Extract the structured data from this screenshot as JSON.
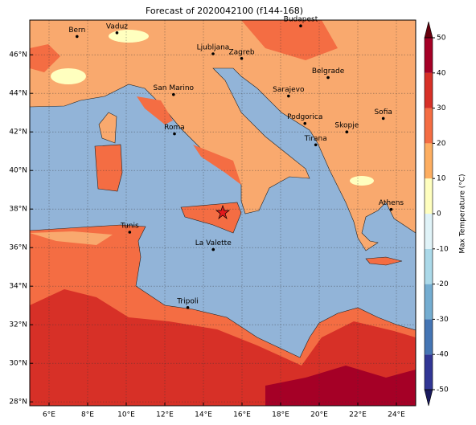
{
  "chart_data": {
    "type": "map",
    "title": "Forecast of 2020042100 (f144-168)",
    "xlim": [
      5,
      25
    ],
    "ylim": [
      27.8,
      47.8
    ],
    "xticks": [
      {
        "value": 6,
        "label": "6°E"
      },
      {
        "value": 8,
        "label": "8°E"
      },
      {
        "value": 10,
        "label": "10°E"
      },
      {
        "value": 12,
        "label": "12°E"
      },
      {
        "value": 14,
        "label": "14°E"
      },
      {
        "value": 16,
        "label": "16°E"
      },
      {
        "value": 18,
        "label": "18°E"
      },
      {
        "value": 20,
        "label": "20°E"
      },
      {
        "value": 22,
        "label": "22°E"
      },
      {
        "value": 24,
        "label": "24°E"
      }
    ],
    "yticks": [
      {
        "value": 28,
        "label": "28°N"
      },
      {
        "value": 30,
        "label": "30°N"
      },
      {
        "value": 32,
        "label": "32°N"
      },
      {
        "value": 34,
        "label": "34°N"
      },
      {
        "value": 36,
        "label": "36°N"
      },
      {
        "value": 38,
        "label": "38°N"
      },
      {
        "value": 40,
        "label": "40°N"
      },
      {
        "value": 42,
        "label": "42°N"
      },
      {
        "value": 44,
        "label": "44°N"
      },
      {
        "value": 46,
        "label": "46°N"
      }
    ],
    "grid": true,
    "cities": [
      {
        "name": "Bern",
        "lon": 7.45,
        "lat": 46.95
      },
      {
        "name": "Vaduz",
        "lon": 9.52,
        "lat": 47.14
      },
      {
        "name": "Budapest",
        "lon": 19.04,
        "lat": 47.5
      },
      {
        "name": "Ljubljana",
        "lon": 14.5,
        "lat": 46.05
      },
      {
        "name": "Zagreb",
        "lon": 15.98,
        "lat": 45.81
      },
      {
        "name": "Belgrade",
        "lon": 20.46,
        "lat": 44.82
      },
      {
        "name": "Sarajevo",
        "lon": 18.41,
        "lat": 43.86
      },
      {
        "name": "San Marino",
        "lon": 12.45,
        "lat": 43.94
      },
      {
        "name": "Sofia",
        "lon": 23.32,
        "lat": 42.7
      },
      {
        "name": "Podgorica",
        "lon": 19.26,
        "lat": 42.44
      },
      {
        "name": "Skopje",
        "lon": 21.43,
        "lat": 42.0
      },
      {
        "name": "Roma",
        "lon": 12.5,
        "lat": 41.9
      },
      {
        "name": "Tirana",
        "lon": 19.82,
        "lat": 41.33
      },
      {
        "name": "Athens",
        "lon": 23.73,
        "lat": 37.98
      },
      {
        "name": "Tunis",
        "lon": 10.18,
        "lat": 36.8
      },
      {
        "name": "La Valette",
        "lon": 14.51,
        "lat": 35.9
      },
      {
        "name": "Tripoli",
        "lon": 13.19,
        "lat": 32.89
      }
    ],
    "colorbar": {
      "label": "Max Temperature (°C)",
      "lim": [
        -50,
        50
      ],
      "ticks": [
        -50,
        -40,
        -30,
        -20,
        -10,
        0,
        10,
        20,
        30,
        40,
        50
      ],
      "colors": [
        "#313695",
        "#4575b4",
        "#74add1",
        "#abd9e9",
        "#e0f3f8",
        "#ffffbf",
        "#fdae61",
        "#f46d43",
        "#d73027",
        "#a50026"
      ],
      "extend_colors": [
        "#1a1a5e",
        "#67000d"
      ]
    }
  }
}
